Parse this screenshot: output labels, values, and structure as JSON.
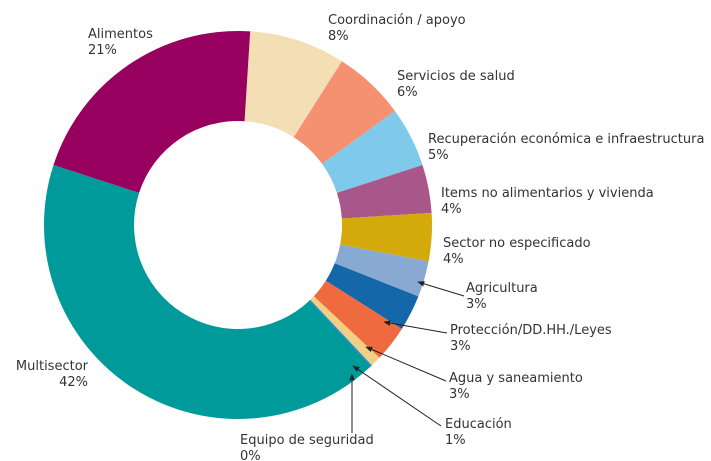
{
  "chart_data": {
    "type": "donut",
    "categories": [
      "Coordinación / apoyo",
      "Servicios de salud",
      "Recuperación económica e infraestructura",
      "Items no alimentarios y vivienda",
      "Sector no especificado",
      "Agricultura",
      "Protección/DD.HH./Leyes",
      "Agua y saneamiento",
      "Educación",
      "Equipo de seguridad",
      "Multisector",
      "Alimentos"
    ],
    "values": [
      8,
      6,
      5,
      4,
      4,
      3,
      3,
      3,
      1,
      0,
      42,
      21
    ],
    "value_labels": [
      "8%",
      "6%",
      "5%",
      "4%",
      "4%",
      "3%",
      "3%",
      "3%",
      "1%",
      "0%",
      "42%",
      "21%"
    ],
    "colors": [
      "#f3dfb3",
      "#f59170",
      "#7fc9eb",
      "#a9568a",
      "#d4a90c",
      "#88a9d2",
      "#1467a8",
      "#ef6b3f",
      "#f1cf84",
      "#2b8fd0",
      "#009a9a",
      "#98005f"
    ]
  }
}
